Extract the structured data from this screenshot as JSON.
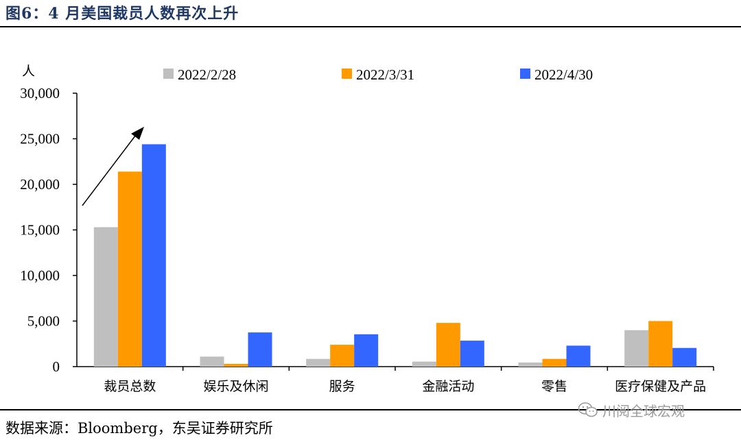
{
  "figure_title": "图6：4 月美国裁员人数再次上升",
  "source_text": "数据来源：Bloomberg，东吴证券研究所",
  "watermark_text": "川阅全球宏观",
  "chart_data": {
    "type": "bar",
    "ylabel": "人",
    "ylim": [
      0,
      30000
    ],
    "yticks": [
      0,
      5000,
      10000,
      15000,
      20000,
      25000,
      30000
    ],
    "ytick_labels": [
      "0",
      "5,000",
      "10,000",
      "15,000",
      "20,000",
      "25,000",
      "30,000"
    ],
    "categories": [
      "裁员总数",
      "娱乐及休闲",
      "服务",
      "金融活动",
      "零售",
      "医疗保健及产品"
    ],
    "series": [
      {
        "name": "2022/2/28",
        "color": "#bfbfbf",
        "values": [
          15300,
          1100,
          850,
          550,
          450,
          4000
        ]
      },
      {
        "name": "2022/3/31",
        "color": "#ff9900",
        "values": [
          21400,
          300,
          2400,
          4800,
          850,
          5000
        ]
      },
      {
        "name": "2022/4/30",
        "color": "#3366ff",
        "values": [
          24400,
          3750,
          3550,
          2850,
          2300,
          2050
        ]
      }
    ],
    "legend_position": "top",
    "grid": false,
    "annotation": "upward-arrow"
  }
}
